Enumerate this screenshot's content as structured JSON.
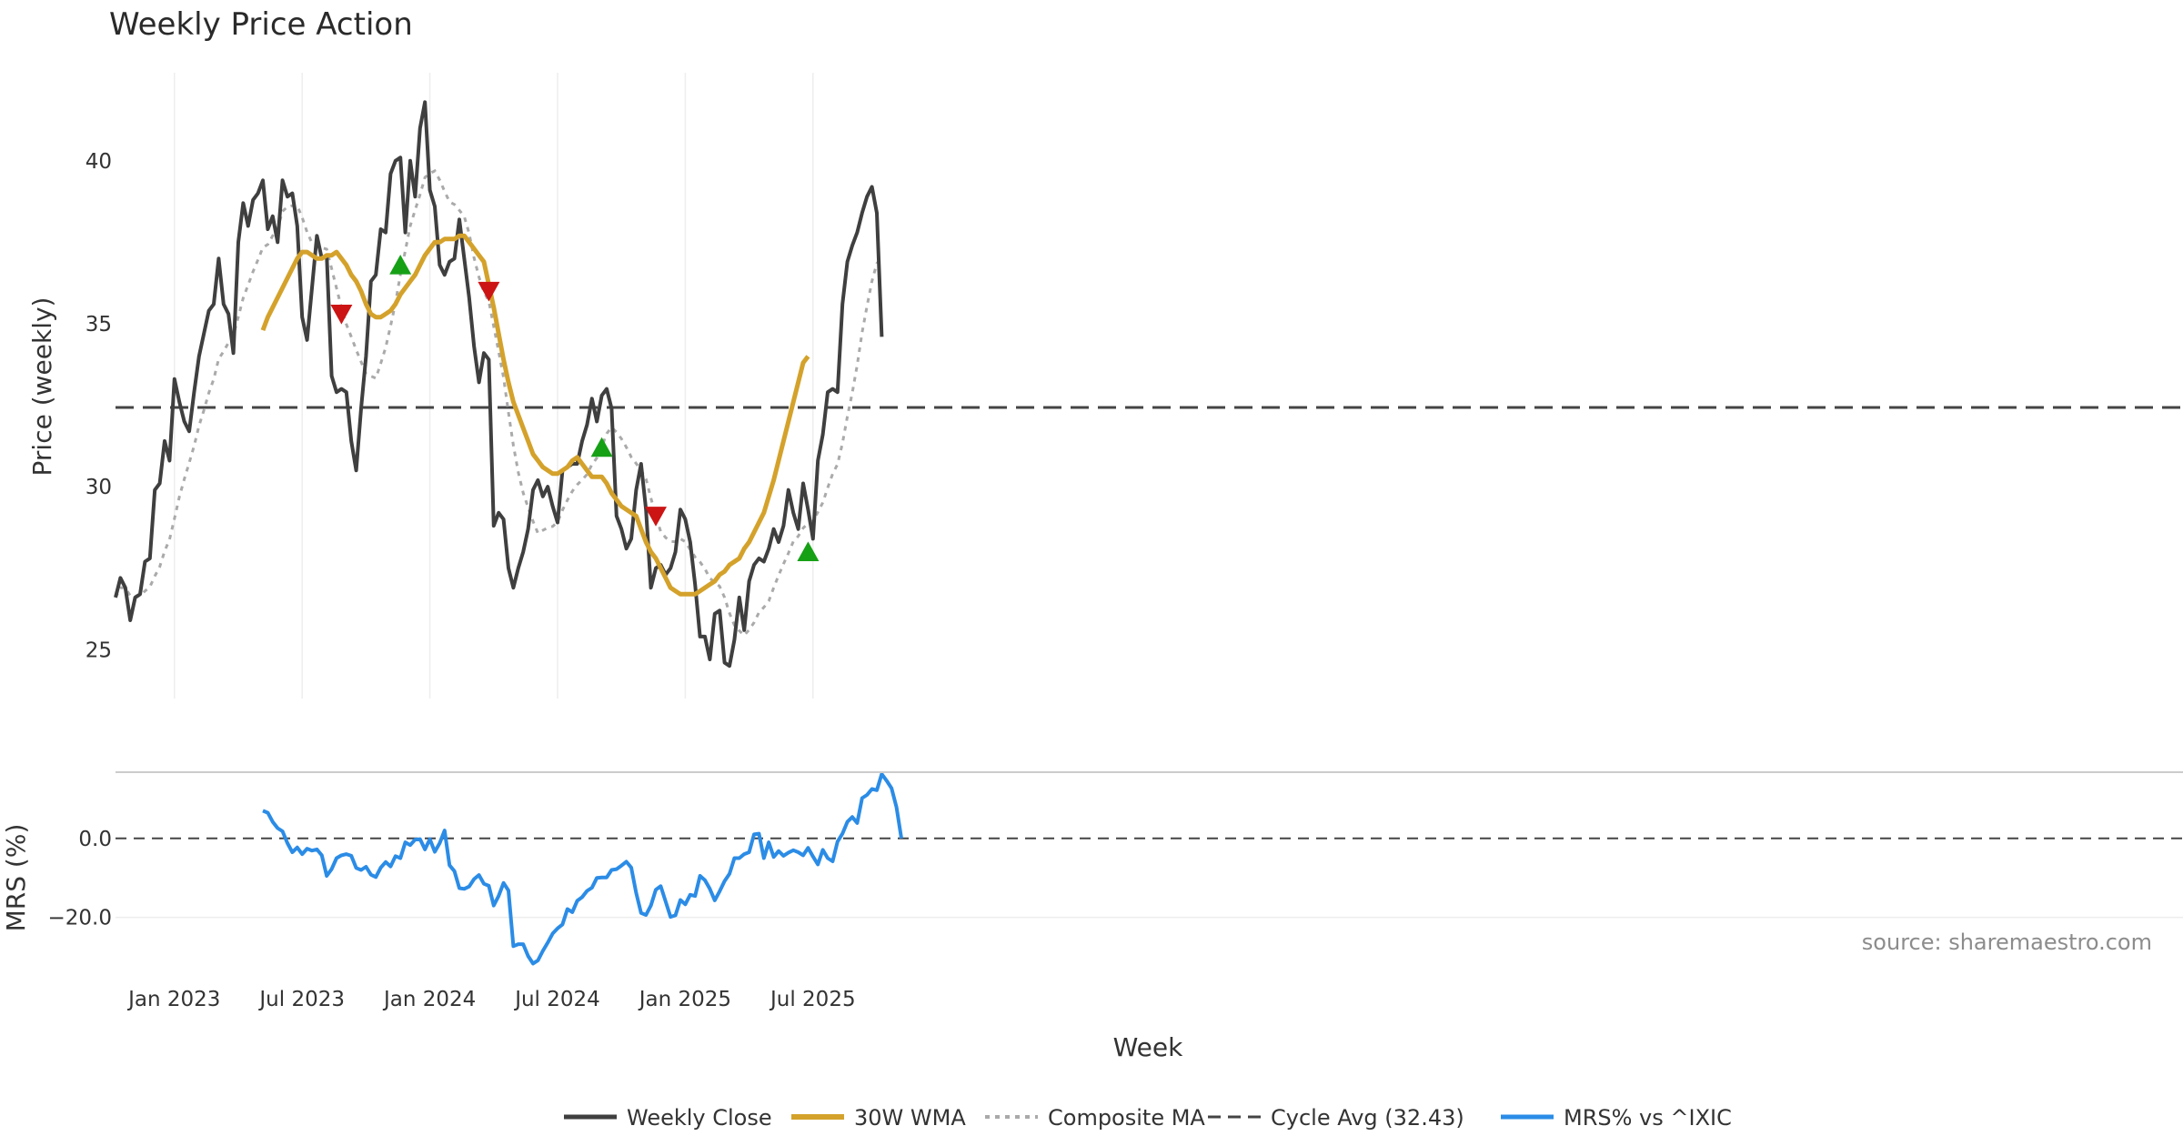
{
  "chart_data": {
    "type": "line",
    "title": "Weekly Price Action",
    "xlabel": "Week",
    "source": "source: sharemaestro.com",
    "x_ticks": [
      {
        "date": "2022-12-31",
        "label": "Jan 2023"
      },
      {
        "date": "2023-07-01",
        "label": "Jul 2023"
      },
      {
        "date": "2023-12-30",
        "label": "Jan 2024"
      },
      {
        "date": "2024-06-29",
        "label": "Jul 2024"
      },
      {
        "date": "2024-12-28",
        "label": "Jan 2025"
      },
      {
        "date": "2025-06-28",
        "label": "Jul 2025"
      }
    ],
    "price_panel": {
      "ylabel": "Price (weekly)",
      "ylim": [
        23.5,
        42.7
      ],
      "yticks": [
        25,
        30,
        35,
        40
      ],
      "cycle_avg": 32.43,
      "start_date": "2022-10-08",
      "weekly_close": [
        26.6,
        27.2,
        26.9,
        25.9,
        26.6,
        26.7,
        27.7,
        27.8,
        29.9,
        30.1,
        31.4,
        30.8,
        33.3,
        32.6,
        32.0,
        31.7,
        32.9,
        34.0,
        34.7,
        35.4,
        35.6,
        37.0,
        35.6,
        35.3,
        34.1,
        37.5,
        38.7,
        38.0,
        38.8,
        39.0,
        39.4,
        37.9,
        38.3,
        37.5,
        39.4,
        38.9,
        39.0,
        38.0,
        35.2,
        34.5,
        36.1,
        37.7,
        37.0,
        37.1,
        33.4,
        32.9,
        33.0,
        32.9,
        31.4,
        30.5,
        32.4,
        34.0,
        36.3,
        36.5,
        37.9,
        37.8,
        39.6,
        40.0,
        40.1,
        37.8,
        40.0,
        38.9,
        41.0,
        41.8,
        39.1,
        38.6,
        36.8,
        36.5,
        36.9,
        37.0,
        38.2,
        37.0,
        35.8,
        34.3,
        33.2,
        34.1,
        33.9,
        28.8,
        29.2,
        29.0,
        27.5,
        26.9,
        27.5,
        28.0,
        28.7,
        29.9,
        30.2,
        29.7,
        30.0,
        29.4,
        28.9,
        30.5,
        30.6,
        30.7,
        30.7,
        31.4,
        31.9,
        32.7,
        32.0,
        32.8,
        33.0,
        32.4,
        29.1,
        28.7,
        28.1,
        28.4,
        29.9,
        30.7,
        29.3,
        26.9,
        27.5,
        27.6,
        27.3,
        27.5,
        28.0,
        29.3,
        29.0,
        28.3,
        27.0,
        25.4,
        25.4,
        24.7,
        26.1,
        26.2,
        24.6,
        24.5,
        25.3,
        26.6,
        25.6,
        27.1,
        27.6,
        27.8,
        27.7,
        28.1,
        28.7,
        28.3,
        28.8,
        29.9,
        29.2,
        28.7,
        30.1,
        29.3,
        28.4,
        30.8,
        31.6,
        32.9,
        33.0,
        32.9,
        35.6,
        36.9,
        37.4,
        37.8,
        38.4,
        38.9,
        39.2,
        38.4,
        34.6
      ],
      "wma_30w_start_index": 30,
      "wma_30w": [
        34.8,
        35.2,
        35.5,
        35.8,
        36.1,
        36.4,
        36.7,
        37.0,
        37.2,
        37.2,
        37.1,
        37.0,
        37.0,
        37.1,
        37.1,
        37.2,
        37.0,
        36.8,
        36.5,
        36.3,
        36.0,
        35.6,
        35.3,
        35.2,
        35.2,
        35.3,
        35.4,
        35.6,
        35.9,
        36.1,
        36.3,
        36.5,
        36.8,
        37.1,
        37.3,
        37.5,
        37.5,
        37.6,
        37.6,
        37.6,
        37.7,
        37.7,
        37.5,
        37.3,
        37.1,
        36.9,
        36.2,
        35.5,
        34.7,
        33.9,
        33.2,
        32.6,
        32.2,
        31.8,
        31.4,
        31.0,
        30.8,
        30.6,
        30.5,
        30.4,
        30.4,
        30.5,
        30.6,
        30.8,
        30.9,
        30.7,
        30.5,
        30.3,
        30.3,
        30.3,
        30.1,
        29.8,
        29.6,
        29.4,
        29.3,
        29.2,
        29.1,
        28.7,
        28.3,
        28.0,
        27.8,
        27.5,
        27.2,
        26.9,
        26.8,
        26.7,
        26.7,
        26.7,
        26.7,
        26.8,
        26.9,
        27.0,
        27.1,
        27.3,
        27.4,
        27.6,
        27.7,
        27.8,
        28.1,
        28.3,
        28.6,
        28.9,
        29.2,
        29.7,
        30.2,
        30.8,
        31.4,
        32.0,
        32.6,
        33.2,
        33.8,
        34.0
      ]
    },
    "mrs_panel": {
      "ylabel": "MRS (%)",
      "ylim": [
        -33,
        17
      ],
      "yticks": [
        0.0,
        -20.0
      ],
      "ytick_labels": [
        "0.0",
        "−20.0"
      ],
      "mrs_start_index": 30,
      "mrs": [
        7.0,
        6.5,
        4.2,
        2.6,
        1.8,
        -1.2,
        -3.5,
        -2.3,
        -4.0,
        -2.6,
        -3.1,
        -2.8,
        -4.3,
        -9.5,
        -7.8,
        -5.0,
        -4.3,
        -4.0,
        -4.4,
        -7.5,
        -8.0,
        -7.2,
        -9.2,
        -9.8,
        -7.4,
        -6.0,
        -7.1,
        -4.5,
        -5.0,
        -1.0,
        -1.7,
        -0.3,
        -0.2,
        -2.8,
        -0.2,
        -3.4,
        -1.2,
        2.0,
        -6.8,
        -8.3,
        -12.6,
        -12.8,
        -12.2,
        -10.3,
        -9.3,
        -11.5,
        -12.0,
        -17.0,
        -14.6,
        -11.3,
        -13.2,
        -27.3,
        -26.8,
        -26.8,
        -29.8,
        -31.7,
        -30.9,
        -28.5,
        -26.4,
        -24.1,
        -22.8,
        -21.8,
        -17.9,
        -18.7,
        -15.8,
        -14.9,
        -13.3,
        -12.5,
        -10.0,
        -9.9,
        -9.9,
        -8.0,
        -7.8,
        -6.9,
        -5.9,
        -7.4,
        -13.8,
        -18.9,
        -19.4,
        -17.0,
        -13.0,
        -12.1,
        -16.0,
        -19.9,
        -19.5,
        -15.6,
        -16.7,
        -14.3,
        -14.6,
        -9.5,
        -10.6,
        -12.8,
        -15.7,
        -13.4,
        -10.8,
        -9.0,
        -5.0,
        -5.0,
        -4.0,
        -3.5,
        1.0,
        1.2,
        -5.0,
        -1.0,
        -4.7,
        -3.2,
        -4.4,
        -3.6,
        -3.0,
        -3.5,
        -4.3,
        -2.4,
        -4.6,
        -6.6,
        -2.9,
        -5.0,
        -5.8,
        -0.8,
        1.2,
        4.2,
        5.4,
        3.9,
        10.2,
        11.0,
        12.5,
        12.2,
        16.3,
        14.6,
        12.7,
        7.9,
        0.0
      ]
    },
    "markers": [
      {
        "type": "buy",
        "index": 58,
        "value": 36.8
      },
      {
        "type": "buy",
        "index": 99,
        "value": 31.2
      },
      {
        "type": "buy",
        "index": 141,
        "value": 28.0
      },
      {
        "type": "sell",
        "index": 46,
        "value": 35.3
      },
      {
        "type": "sell",
        "index": 76,
        "value": 36.0
      },
      {
        "type": "sell",
        "index": 110,
        "value": 29.1
      }
    ],
    "legend": [
      {
        "key": "close",
        "label": "Weekly Close"
      },
      {
        "key": "wma",
        "label": "30W WMA"
      },
      {
        "key": "composite",
        "label": "Composite MA"
      },
      {
        "key": "cycle",
        "label": "Cycle Avg (32.43)"
      },
      {
        "key": "mrs",
        "label": "MRS% vs ^IXIC"
      }
    ],
    "colors": {
      "close": "#3f3f3f",
      "wma": "#d4a22b",
      "composite": "#aaaaaa",
      "cycle": "#444444",
      "mrs": "#2b8ce6",
      "buy": "#16a016",
      "sell": "#cc1414",
      "grid": "#eeeeee"
    }
  }
}
